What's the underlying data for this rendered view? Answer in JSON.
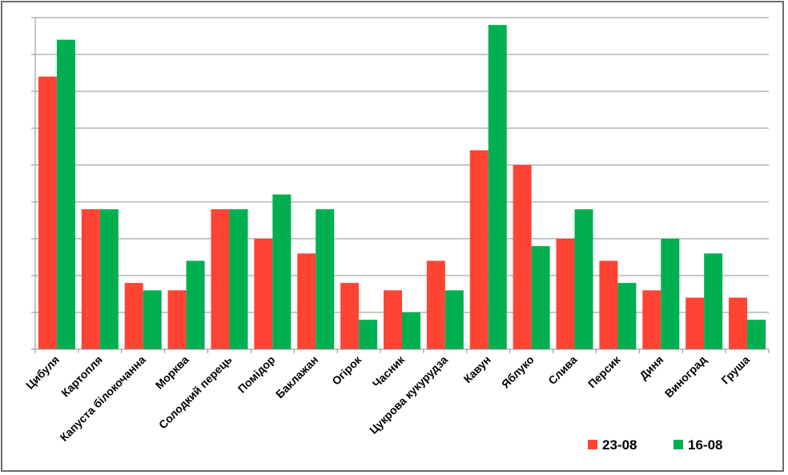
{
  "chart_data": {
    "type": "bar",
    "categories": [
      "Цибуля",
      "Картопля",
      "Капуста білокочанна",
      "Морква",
      "Солодкий перець",
      "Помідор",
      "Баклажан",
      "Огірок",
      "Часник",
      "Цукрова кукурудза",
      "Кавун",
      "Яблуко",
      "Слива",
      "Персик",
      "Диня",
      "Виноград",
      "Груша"
    ],
    "series": [
      {
        "name": "23-08",
        "color": "#ff4433",
        "values": [
          7.4,
          3.8,
          1.8,
          1.6,
          3.8,
          3.0,
          2.6,
          1.8,
          1.6,
          2.4,
          5.4,
          5.0,
          3.0,
          2.4,
          1.6,
          1.4,
          1.4
        ]
      },
      {
        "name": "16-08",
        "color": "#00b050",
        "values": [
          8.4,
          3.8,
          1.6,
          2.4,
          3.8,
          4.2,
          3.8,
          0.8,
          1.0,
          1.6,
          8.8,
          2.8,
          3.8,
          1.8,
          3.0,
          2.6,
          0.8
        ]
      }
    ],
    "ylim": [
      0,
      9
    ],
    "grid": true,
    "legend": "bottom-right"
  }
}
